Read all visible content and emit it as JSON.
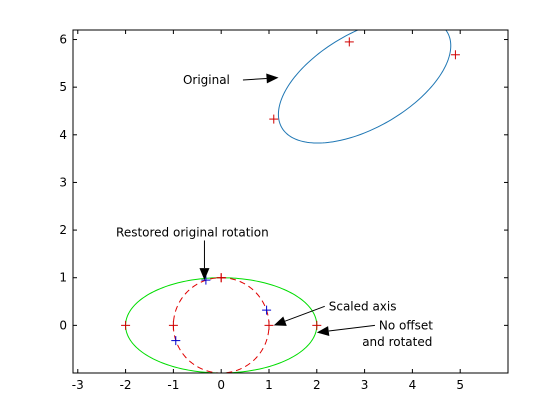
{
  "chart_data": {
    "type": "line",
    "xlim": [
      -3.1,
      6.0
    ],
    "ylim": [
      -1.0,
      6.2
    ],
    "x_ticks": [
      -3,
      -2,
      -1,
      0,
      1,
      2,
      3,
      4,
      5
    ],
    "y_ticks": [
      0,
      1,
      2,
      3,
      4,
      5,
      6
    ],
    "grid": false,
    "series": [
      {
        "kind": "ellipse",
        "color": "#1f77b4",
        "style": "solid",
        "center": [
          3.0,
          5.15
        ],
        "semi_axes": [
          2.0,
          1.0
        ],
        "rotation_deg": 30,
        "points": [
          [
            1.1,
            4.33
          ],
          [
            2.68,
            5.95
          ],
          [
            4.9,
            5.68
          ]
        ],
        "point_color": "#d00000"
      },
      {
        "kind": "ellipse",
        "color": "#00dd00",
        "style": "solid",
        "center": [
          0,
          0
        ],
        "semi_axes": [
          2.0,
          1.0
        ],
        "rotation_deg": 0,
        "points": [
          [
            -2,
            0
          ],
          [
            0,
            1
          ],
          [
            2,
            0
          ]
        ],
        "point_color": "#d00000"
      },
      {
        "kind": "ellipse",
        "color": "#e00000",
        "style": "dashed",
        "center": [
          0,
          0
        ],
        "semi_axes": [
          1.0,
          1.0
        ],
        "rotation_deg": 0,
        "points": [
          [
            -1,
            0
          ],
          [
            0,
            1
          ],
          [
            1,
            0
          ]
        ],
        "point_color": "#d00000"
      },
      {
        "kind": "points",
        "color": "#0000cc",
        "points": [
          [
            -0.32,
            0.95
          ],
          [
            -0.95,
            -0.32
          ],
          [
            0.95,
            0.32
          ]
        ]
      }
    ],
    "annotations": [
      {
        "text": "Original",
        "at": [
          -0.8,
          5.15
        ],
        "arrow_to": [
          1.2,
          5.2
        ],
        "align": "start"
      },
      {
        "text": "Restored original rotation",
        "at": [
          -2.2,
          1.95
        ],
        "arrow_to": [
          -0.35,
          0.95
        ],
        "align": "start"
      },
      {
        "text": "Scaled axis",
        "at": [
          2.25,
          0.4
        ],
        "arrow_to": [
          1.1,
          0.0
        ],
        "align": "start"
      },
      {
        "text": "No offset",
        "at": [
          3.3,
          0.0
        ],
        "arrow_to": [
          2.0,
          -0.15
        ],
        "align": "start",
        "second_line": "and rotated",
        "second_at": [
          2.95,
          -0.35
        ]
      }
    ]
  }
}
